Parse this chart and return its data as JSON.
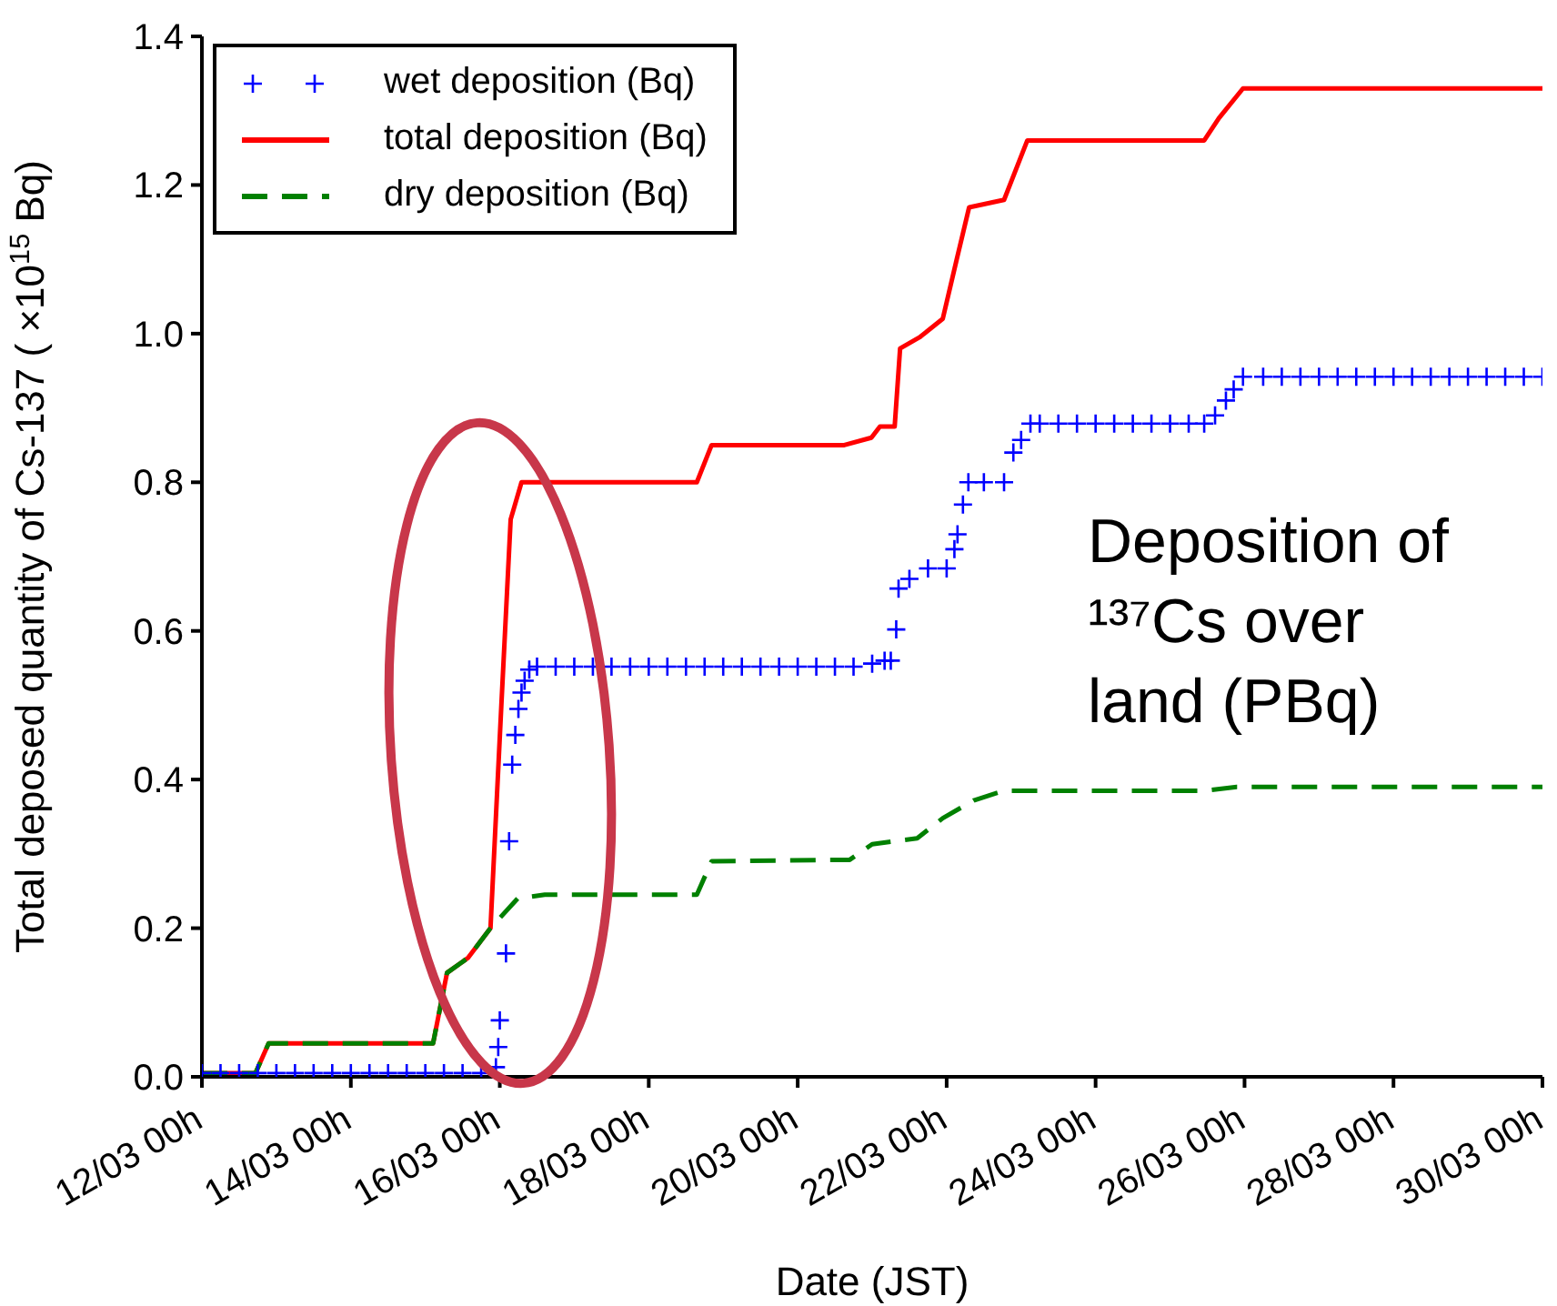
{
  "chart_data": {
    "type": "line",
    "xlabel": "Date (JST)",
    "ylabel": "Total deposed quantity of Cs-137 ( ×10$^{15}$ Bq)",
    "xlim": [
      "--03-12T00:00",
      "--03-30T00:00"
    ],
    "xticks": [
      {
        "value": "--03-12T00:00",
        "label": "12/03 00h"
      },
      {
        "value": "--03-14T00:00",
        "label": "14/03 00h"
      },
      {
        "value": "--03-16T00:00",
        "label": "16/03 00h"
      },
      {
        "value": "--03-18T00:00",
        "label": "18/03 00h"
      },
      {
        "value": "--03-20T00:00",
        "label": "20/03 00h"
      },
      {
        "value": "--03-22T00:00",
        "label": "22/03 00h"
      },
      {
        "value": "--03-24T00:00",
        "label": "24/03 00h"
      },
      {
        "value": "--03-26T00:00",
        "label": "26/03 00h"
      },
      {
        "value": "--03-28T00:00",
        "label": "28/03 00h"
      },
      {
        "value": "--03-30T00:00",
        "label": "30/03 00h"
      }
    ],
    "ylim": [
      0,
      1.4
    ],
    "yticks": [
      {
        "value": 0,
        "label": "0.0"
      },
      {
        "value": 0.2,
        "label": "0.2"
      },
      {
        "value": 0.4,
        "label": "0.4"
      },
      {
        "value": 0.6,
        "label": "0.6"
      },
      {
        "value": 0.8,
        "label": "0.8"
      },
      {
        "value": 1,
        "label": "1.0"
      },
      {
        "value": 1.2,
        "label": "1.2"
      },
      {
        "value": 1.4,
        "label": "1.4"
      }
    ],
    "grid": false,
    "legend": "top left",
    "annotations": [
      "Deposition of ¹³⁷Cs over land (PBq)"
    ],
    "series": [
      {
        "name": "wet deposition (Bq)",
        "type": "scatter",
        "marker": "cross",
        "color": "#0000ff",
        "x": [
          "--03-12T00:00",
          "--03-12T06:00",
          "--03-12T12:00",
          "--03-12T18:00",
          "--03-13T00:00",
          "--03-13T06:00",
          "--03-13T12:00",
          "--03-13T18:00",
          "--03-14T00:00",
          "--03-14T06:00",
          "--03-14T12:00",
          "--03-14T18:00",
          "--03-15T00:00",
          "--03-15T06:00",
          "--03-15T12:00",
          "--03-15T18:00",
          "--03-15T22:45",
          "--03-15T23:30",
          "--03-16T00:00",
          "--03-16T02:00",
          "--03-16T03:00",
          "--03-16T04:00",
          "--03-16T05:00",
          "--03-16T06:00",
          "--03-16T07:00",
          "--03-16T08:00",
          "--03-16T09:30",
          "--03-16T12:00",
          "--03-16T18:00",
          "--03-17T00:00",
          "--03-17T06:00",
          "--03-17T12:00",
          "--03-17T18:00",
          "--03-18T00:00",
          "--03-18T06:00",
          "--03-18T12:00",
          "--03-18T18:00",
          "--03-19T00:00",
          "--03-19T06:00",
          "--03-19T12:00",
          "--03-19T18:00",
          "--03-20T00:00",
          "--03-20T06:00",
          "--03-20T12:00",
          "--03-20T18:00",
          "--03-21T00:00",
          "--03-21T04:00",
          "--03-21T06:00",
          "--03-21T07:45",
          "--03-21T08:30",
          "--03-21T12:00",
          "--03-21T18:00",
          "--03-22T00:00",
          "--03-22T02:30",
          "--03-22T03:30",
          "--03-22T05:15",
          "--03-22T07:00",
          "--03-22T12:00",
          "--03-22T18:30",
          "--03-22T21:30",
          "--03-23T00:00",
          "--03-23T03:00",
          "--03-23T06:00",
          "--03-23T12:00",
          "--03-23T18:00",
          "--03-24T00:00",
          "--03-24T06:00",
          "--03-24T12:00",
          "--03-24T18:00",
          "--03-25T00:00",
          "--03-25T06:00",
          "--03-25T11:00",
          "--03-25T14:30",
          "--03-25T18:00",
          "--03-25T20:30",
          "--03-25T23:30",
          "--03-26T06:00",
          "--03-26T12:00",
          "--03-26T18:00",
          "--03-27T00:00",
          "--03-27T06:00",
          "--03-27T12:00",
          "--03-27T18:00",
          "--03-28T00:00",
          "--03-28T06:00",
          "--03-28T12:00",
          "--03-28T18:00",
          "--03-29T00:00",
          "--03-29T06:00",
          "--03-29T12:00",
          "--03-29T18:00",
          "--03-30T00:00"
        ],
        "values": [
          0.005,
          0.005,
          0.005,
          0.005,
          0.005,
          0.005,
          0.005,
          0.005,
          0.005,
          0.005,
          0.005,
          0.005,
          0.005,
          0.005,
          0.005,
          0.005,
          0.013,
          0.04,
          0.076,
          0.166,
          0.317,
          0.42,
          0.46,
          0.495,
          0.517,
          0.533,
          0.548,
          0.552,
          0.552,
          0.552,
          0.552,
          0.552,
          0.552,
          0.552,
          0.552,
          0.552,
          0.552,
          0.552,
          0.552,
          0.552,
          0.552,
          0.552,
          0.552,
          0.552,
          0.552,
          0.556,
          0.56,
          0.56,
          0.602,
          0.657,
          0.67,
          0.684,
          0.684,
          0.71,
          0.73,
          0.77,
          0.8,
          0.8,
          0.8,
          0.84,
          0.857,
          0.879,
          0.879,
          0.879,
          0.879,
          0.879,
          0.879,
          0.879,
          0.879,
          0.879,
          0.879,
          0.879,
          0.89,
          0.91,
          0.925,
          0.942,
          0.942,
          0.942,
          0.942,
          0.942,
          0.942,
          0.942,
          0.942,
          0.942,
          0.942,
          0.942,
          0.942,
          0.942,
          0.942,
          0.942,
          0.942,
          0.942
        ]
      },
      {
        "name": "total deposition (Bq)",
        "line_style": "solid",
        "color": "#ff0000",
        "x": [
          "--03-12T00:00",
          "--03-12T17:15",
          "--03-12T21:30",
          "--03-15T02:30",
          "--03-15T07:00",
          "--03-15T13:45",
          "--03-15T21:00",
          "--03-16T00:30",
          "--03-16T03:30",
          "--03-16T07:00",
          "--03-18T15:30",
          "--03-18T20:15",
          "--03-20T15:00",
          "--03-20T23:45",
          "--03-21T02:30",
          "--03-21T07:15",
          "--03-21T09:00",
          "--03-21T15:15",
          "--03-21T22:45",
          "--03-22T03:15",
          "--03-22T07:15",
          "--03-22T18:30",
          "--03-23T02:00",
          "--03-25T11:00",
          "--03-25T15:45",
          "--03-25T23:30",
          "--03-30T00:00"
        ],
        "values": [
          0.005,
          0.005,
          0.045,
          0.045,
          0.14,
          0.16,
          0.2,
          0.5,
          0.75,
          0.8,
          0.8,
          0.85,
          0.85,
          0.86,
          0.875,
          0.875,
          0.98,
          0.995,
          1.02,
          1.1,
          1.17,
          1.18,
          1.26,
          1.26,
          1.29,
          1.33,
          1.33
        ]
      },
      {
        "name": "dry deposition (Bq)",
        "line_style": "dashed",
        "color": "#008000",
        "x": [
          "--03-12T00:00",
          "--03-12T17:15",
          "--03-12T21:30",
          "--03-15T02:30",
          "--03-15T07:00",
          "--03-15T13:45",
          "--03-15T21:00",
          "--03-16T05:45",
          "--03-16T14:30",
          "--03-18T15:30",
          "--03-18T20:15",
          "--03-20T16:45",
          "--03-21T00:00",
          "--03-21T14:30",
          "--03-21T22:45",
          "--03-22T08:45",
          "--03-22T18:30",
          "--03-25T11:00",
          "--03-25T21:30",
          "--03-30T00:00"
        ],
        "values": [
          0.005,
          0.005,
          0.045,
          0.045,
          0.14,
          0.16,
          0.2,
          0.24,
          0.245,
          0.245,
          0.29,
          0.292,
          0.313,
          0.321,
          0.348,
          0.372,
          0.385,
          0.385,
          0.39,
          0.39
        ]
      }
    ]
  }
}
